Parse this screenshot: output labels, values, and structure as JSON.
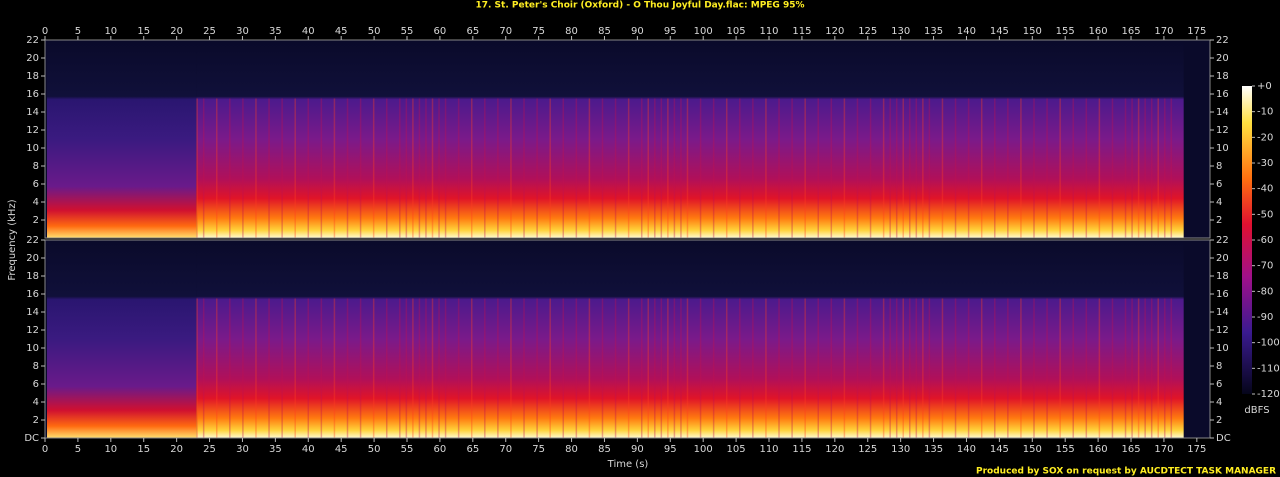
{
  "chart_data": {
    "type": "spectrogram",
    "title": "17. St. Peter's Choir (Oxford) - O Thou Joyful Day.flac: MPEG 95%",
    "xlabel": "Time (s)",
    "ylabel": "Frequency (kHz)",
    "xlim": [
      0,
      177
    ],
    "xticks": [
      0,
      5,
      10,
      15,
      20,
      25,
      30,
      35,
      40,
      45,
      50,
      55,
      60,
      65,
      70,
      75,
      80,
      85,
      90,
      95,
      100,
      105,
      110,
      115,
      120,
      125,
      130,
      135,
      140,
      145,
      150,
      155,
      160,
      165,
      170,
      175
    ],
    "ylim": [
      0,
      22
    ],
    "panels": [
      {
        "yticks": [
          2,
          4,
          6,
          8,
          10,
          12,
          14,
          16,
          18,
          20,
          22
        ]
      },
      {
        "yticks": [
          {
            "value": 0,
            "label": "DC"
          },
          2,
          4,
          6,
          8,
          10,
          12,
          14,
          16,
          18,
          20,
          22
        ]
      }
    ],
    "colorbar": {
      "label": "dBFS",
      "lim": [
        -120,
        0
      ],
      "ticks": [
        {
          "value": 0,
          "label": "+0"
        },
        -10,
        -20,
        -30,
        -40,
        -50,
        -60,
        -70,
        -80,
        -90,
        -100,
        -110,
        -120
      ]
    },
    "footer": "Produced by SOX on request by AUCDTECT TASK MANAGER"
  }
}
